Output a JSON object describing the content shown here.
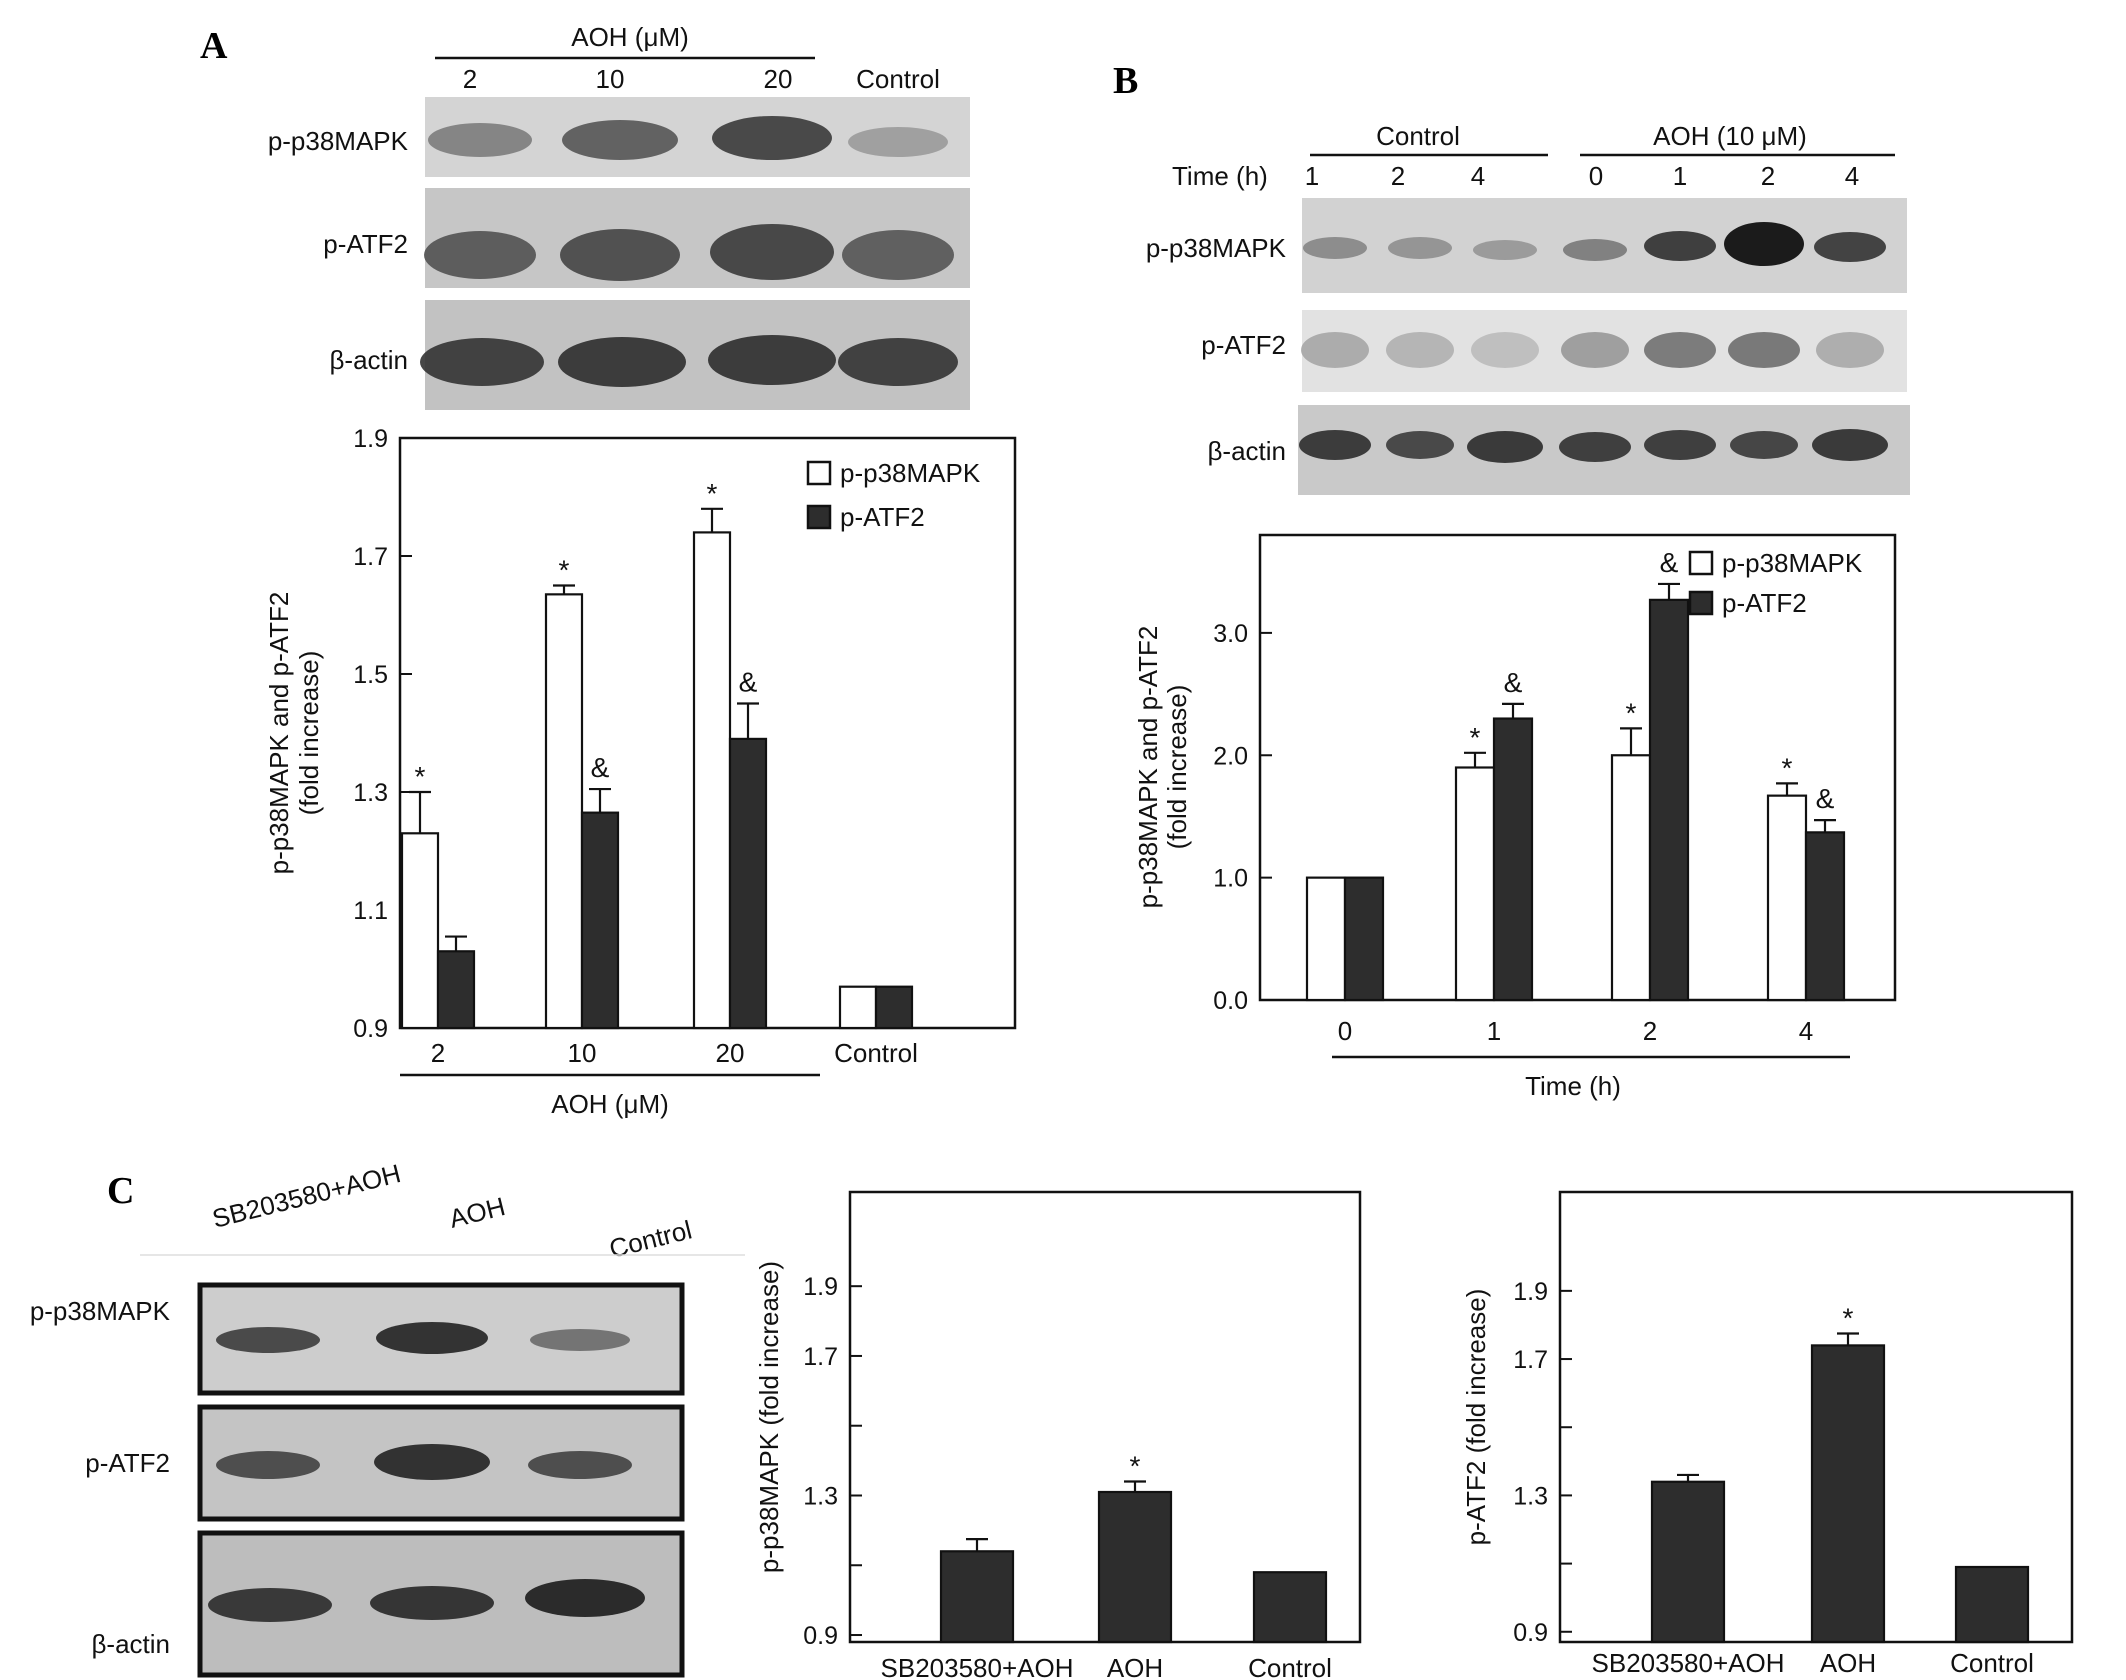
{
  "panels": {
    "A": "A",
    "B": "B",
    "C": "C"
  },
  "colors": {
    "open": "#ffffff",
    "filled": "#2d2d2d",
    "axis": "#111111"
  },
  "blots": {
    "A": {
      "group_label": "AOH (μM)",
      "lanes": [
        "2",
        "10",
        "20",
        "Control"
      ],
      "rows": [
        "p-p38MAPK",
        "p-ATF2",
        "β-actin"
      ]
    },
    "B": {
      "group1_label": "Control",
      "group2_label": "AOH (10 μM)",
      "time_label": "Time (h)",
      "lanes": [
        "1",
        "2",
        "4",
        "0",
        "1",
        "2",
        "4"
      ],
      "rows": [
        "p-p38MAPK",
        "p-ATF2",
        "β-actin"
      ]
    },
    "C": {
      "lanes": [
        "SB203580+AOH",
        "AOH",
        "Control"
      ],
      "rows": [
        "p-p38MAPK",
        "p-ATF2",
        "β-actin"
      ]
    }
  },
  "chart_data": [
    {
      "id": "A",
      "type": "bar",
      "categories": [
        "2",
        "10",
        "20",
        "Control"
      ],
      "group_label": "AOH (μM)",
      "ylabel": [
        "p-p38MAPK and p-ATF2",
        "(fold increase)"
      ],
      "ylim": [
        0.9,
        1.9
      ],
      "yticks": [
        "0.9",
        "1.1",
        "1.3",
        "1.5",
        "1.7",
        "1.9"
      ],
      "legend_position": "top-right",
      "series": [
        {
          "name": "p-p38MAPK",
          "style": "open",
          "values": [
            1.23,
            1.635,
            1.74,
            0.97
          ],
          "errors": [
            0.07,
            0.015,
            0.04,
            0
          ],
          "marks": [
            "*",
            "*",
            "*",
            ""
          ]
        },
        {
          "name": "p-ATF2",
          "style": "filled",
          "values": [
            1.03,
            1.265,
            1.39,
            0.97
          ],
          "errors": [
            0.025,
            0.04,
            0.06,
            0
          ],
          "marks": [
            "",
            "&",
            "&",
            ""
          ]
        }
      ]
    },
    {
      "id": "B",
      "type": "bar",
      "categories": [
        "0",
        "1",
        "2",
        "4"
      ],
      "xlabel": "Time (h)",
      "ylabel": [
        "p-p38MAPK and p-ATF2",
        "(fold increase)"
      ],
      "ylim": [
        0,
        3.8
      ],
      "yticks": [
        "0.0",
        "1.0",
        "2.0",
        "3.0"
      ],
      "legend_position": "top-right",
      "series": [
        {
          "name": "p-p38MAPK",
          "style": "open",
          "values": [
            1.0,
            1.9,
            2.0,
            1.67
          ],
          "errors": [
            0,
            0.12,
            0.22,
            0.1
          ],
          "marks": [
            "",
            "*",
            "*",
            "*"
          ]
        },
        {
          "name": "p-ATF2",
          "style": "filled",
          "values": [
            1.0,
            2.3,
            3.27,
            1.37
          ],
          "errors": [
            0,
            0.12,
            0.13,
            0.1
          ],
          "marks": [
            "",
            "&",
            "&",
            "&"
          ]
        }
      ]
    },
    {
      "id": "C1",
      "type": "bar",
      "categories": [
        "SB203580+AOH",
        "AOH",
        "Control"
      ],
      "ylabel": [
        "p-p38MAPK (fold increase)"
      ],
      "ylim": [
        0.88,
        2.17
      ],
      "yticks": [
        "0.9",
        "1.3",
        "1.7",
        "1.9"
      ],
      "series": [
        {
          "name": "",
          "style": "filled",
          "values": [
            1.14,
            1.31,
            1.08
          ],
          "errors": [
            0.035,
            0.03,
            0
          ],
          "marks": [
            "",
            "*",
            ""
          ]
        }
      ]
    },
    {
      "id": "C2",
      "type": "bar",
      "categories": [
        "SB203580+AOH",
        "AOH",
        "Control"
      ],
      "ylabel": [
        "p-ATF2 (fold increase)"
      ],
      "ylim": [
        0.87,
        2.19
      ],
      "yticks": [
        "0.9",
        "1.3",
        "1.7",
        "1.9"
      ],
      "series": [
        {
          "name": "",
          "style": "filled",
          "values": [
            1.34,
            1.74,
            1.09
          ],
          "errors": [
            0.02,
            0.035,
            0
          ],
          "marks": [
            "",
            "*",
            ""
          ]
        }
      ]
    }
  ]
}
